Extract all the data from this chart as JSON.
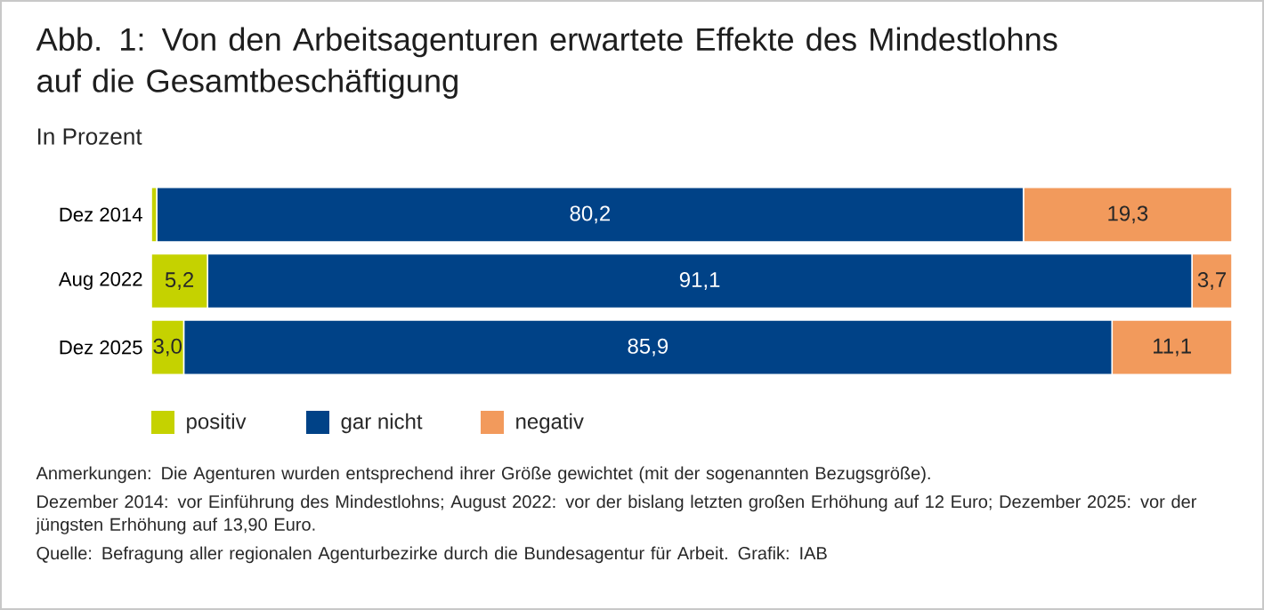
{
  "chart_data": {
    "type": "bar",
    "orientation": "horizontal",
    "stacked": true,
    "title": "Abb. 1: Von den Arbeitsagenturen erwartete Effekte des Mindestlohns auf die Gesamtbeschäftigung",
    "subtitle": "In Prozent",
    "categories": [
      "Dez 2014",
      "Aug 2022",
      "Dez 2025"
    ],
    "series": [
      {
        "name": "positiv",
        "color": "#c5d200",
        "values": [
          0.5,
          5.2,
          3.0
        ],
        "value_labels": [
          null,
          "5,2",
          "3,0"
        ]
      },
      {
        "name": "gar nicht",
        "color": "#004287",
        "values": [
          80.2,
          91.1,
          85.9
        ],
        "value_labels": [
          "80,2",
          "91,1",
          "85,9"
        ]
      },
      {
        "name": "negativ",
        "color": "#f29a5c",
        "values": [
          19.3,
          3.7,
          11.1
        ],
        "value_labels": [
          "19,3",
          "3,7",
          "11,1"
        ]
      }
    ],
    "legend": "bottom left",
    "tick_labels": "y",
    "annotations": [
      "Anmerkungen: Die Agenturen wurden entsprechend ihrer Größe gewichtet (mit der sogenannten Bezugsgröße).",
      "Dezember 2014: vor Einführung des Mindestlohns; August 2022: vor der bislang letzten großen Erhöhung auf 12 Euro; Dezember 2025: vor der jüngsten Erhöhung auf 13,90 Euro.",
      "Quelle: Befragung aller regionalen Agenturbezirke durch die Bundesagentur für Arbeit. Grafik: IAB"
    ]
  }
}
